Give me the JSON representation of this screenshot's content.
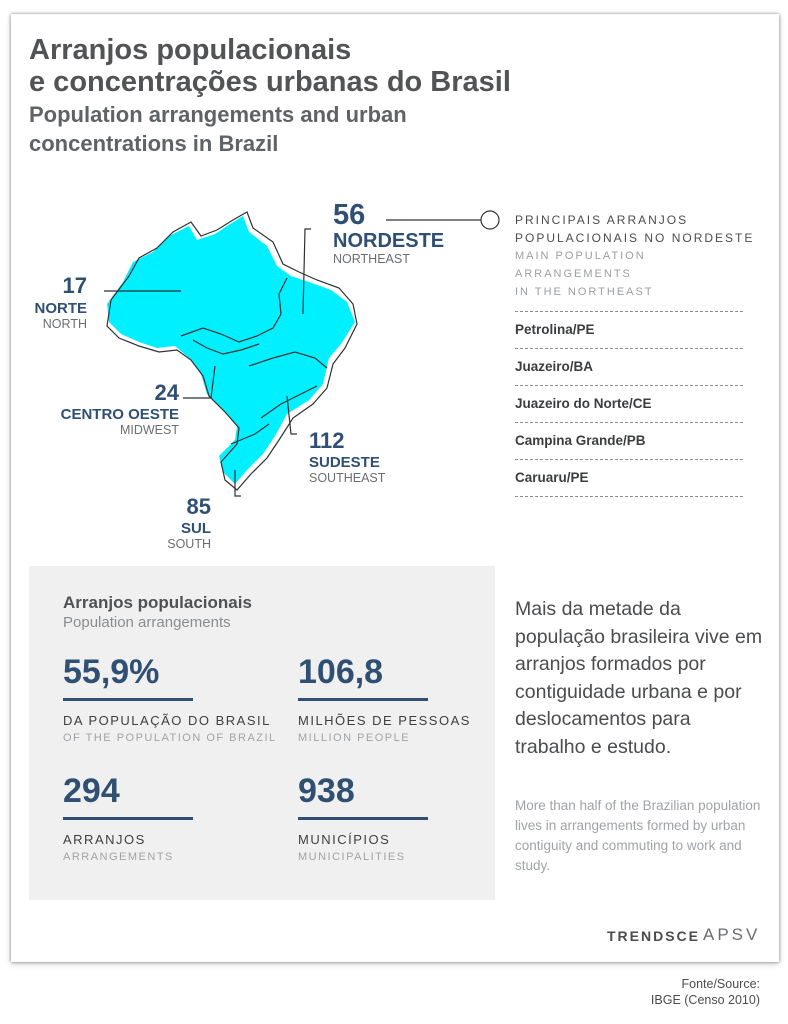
{
  "header": {
    "title_line1": "Arranjos populacionais",
    "title_line2": "e concentrações urbanas do Brasil",
    "subtitle_line1": "Population arrangements and urban",
    "subtitle_line2": "concentrations in Brazil"
  },
  "map": {
    "fill_color": "#00f0ff",
    "regions": {
      "nordeste": {
        "count": "56",
        "name": "NORDESTE",
        "name_en": "NORTHEAST"
      },
      "norte": {
        "count": "17",
        "name": "NORTE",
        "name_en": "NORTH"
      },
      "centro_oeste": {
        "count": "24",
        "name": "CENTRO OESTE",
        "name_en": "MIDWEST"
      },
      "sudeste": {
        "count": "112",
        "name": "SUDESTE",
        "name_en": "SOUTHEAST"
      },
      "sul": {
        "count": "85",
        "name": "SUL",
        "name_en": "SOUTH"
      }
    }
  },
  "northeast_list": {
    "heading_line1": "PRINCIPAIS ARRANJOS",
    "heading_line2": "POPULACIONAIS NO NORDESTE",
    "sub_line1": "MAIN POPULATION ARRANGEMENTS",
    "sub_line2": "IN THE NORTHEAST",
    "items": [
      "Petrolina/PE",
      "Juazeiro/BA",
      "Juazeiro do Norte/CE",
      "Campina Grande/PB",
      "Caruaru/PE"
    ]
  },
  "stats_panel": {
    "title": "Arranjos populacionais",
    "subtitle": "Population arrangements",
    "stats": [
      {
        "value": "55,9%",
        "label": "DA POPULAÇÃO DO BRASIL",
        "label_en": "OF THE POPULATION OF BRAZIL"
      },
      {
        "value": "106,8",
        "label": "MILHÕES DE PESSOAS",
        "label_en": "MILLION PEOPLE"
      },
      {
        "value": "294",
        "label": "ARRANJOS",
        "label_en": "ARRANGEMENTS"
      },
      {
        "value": "938",
        "label": "MUNICÍPIOS",
        "label_en": "MUNICIPALITIES"
      }
    ]
  },
  "description": {
    "text_pt": "Mais da metade da população brasileira vive em arranjos formados por contiguidade urbana e por deslocamentos para trabalho e estudo.",
    "text_en": "More than half of the Brazilian population lives in arrangements formed by urban contiguity and commuting to work and study."
  },
  "brands": {
    "brand1": "TRENDSCE",
    "brand2": "APSV"
  },
  "source": {
    "line1": "Fonte/Source:",
    "line2": "IBGE (Censo 2010)"
  }
}
